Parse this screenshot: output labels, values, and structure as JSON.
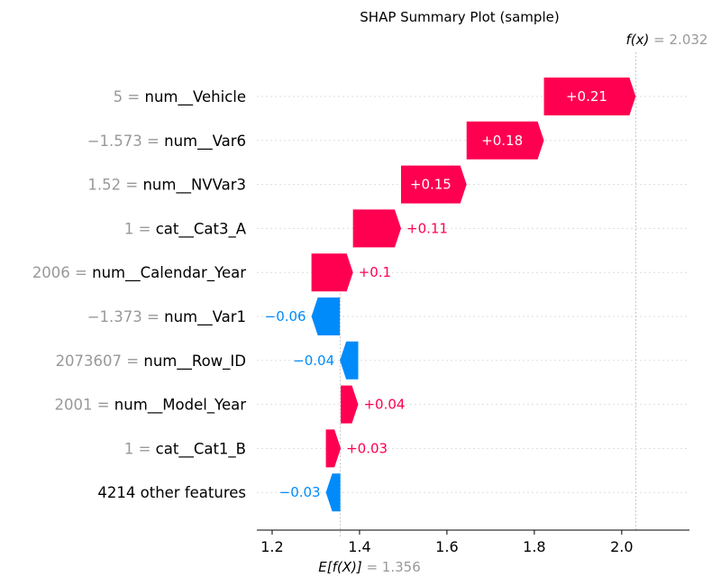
{
  "chart_data": {
    "type": "waterfall",
    "title": "SHAP Summary Plot (sample)",
    "fx_label": "f(x)",
    "fx_value": "2.032",
    "efx_label": "E[f(X)]",
    "efx_value": "1.356",
    "base_value": 1.356,
    "final_value": 2.032,
    "xlim": [
      1.165,
      2.155
    ],
    "xticks": [
      1.2,
      1.4,
      1.6,
      1.8,
      2.0
    ],
    "xtick_labels": [
      "1.2",
      "1.4",
      "1.6",
      "1.8",
      "2.0"
    ],
    "features": [
      {
        "value_text": "5",
        "name": "num__Vehicle",
        "shap": 0.21,
        "label": "+0.21",
        "start": 1.822,
        "end": 2.032
      },
      {
        "value_text": "−1.573",
        "name": "num__Var6",
        "shap": 0.18,
        "label": "+0.18",
        "start": 1.645,
        "end": 1.822
      },
      {
        "value_text": "1.52",
        "name": "num__NVVar3",
        "shap": 0.15,
        "label": "+0.15",
        "start": 1.495,
        "end": 1.645
      },
      {
        "value_text": "1",
        "name": "cat__Cat3_A",
        "shap": 0.11,
        "label": "+0.11",
        "start": 1.385,
        "end": 1.495
      },
      {
        "value_text": "2006",
        "name": "num__Calendar_Year",
        "shap": 0.1,
        "label": "+0.1",
        "start": 1.29,
        "end": 1.385
      },
      {
        "value_text": "−1.373",
        "name": "num__Var1",
        "shap": -0.06,
        "label": "−0.06",
        "start": 1.355,
        "end": 1.29
      },
      {
        "value_text": "2073607",
        "name": "num__Row_ID",
        "shap": -0.04,
        "label": "−0.04",
        "start": 1.397,
        "end": 1.355
      },
      {
        "value_text": "2001",
        "name": "num__Model_Year",
        "shap": 0.04,
        "label": "+0.04",
        "start": 1.357,
        "end": 1.397
      },
      {
        "value_text": "1",
        "name": "cat__Cat1_B",
        "shap": 0.03,
        "label": "+0.03",
        "start": 1.323,
        "end": 1.357
      },
      {
        "value_text": "",
        "name": "4214 other features",
        "shap": -0.03,
        "label": "−0.03",
        "start": 1.356,
        "end": 1.323
      }
    ],
    "colors": {
      "positive": "#ff0051",
      "negative": "#008bfb",
      "feature_value": "#999999",
      "text": "#000000",
      "grid": "#dddddd"
    },
    "grid": true
  }
}
